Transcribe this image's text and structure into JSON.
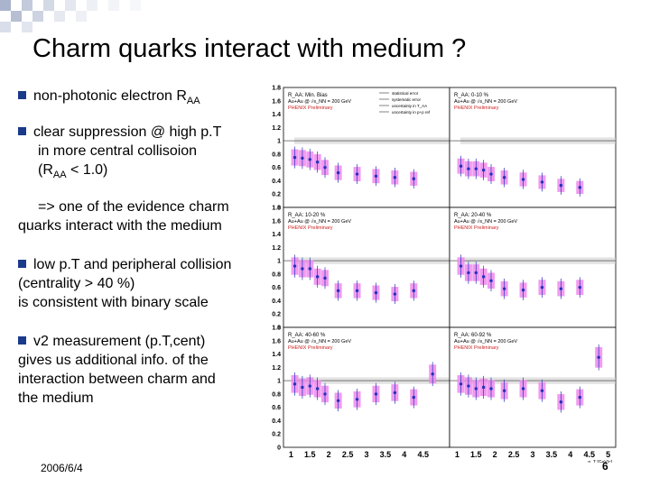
{
  "title": "Charm quarks interact with medium ?",
  "bullets": {
    "b1": {
      "text": "non-photonic electron R",
      "sub": "AA"
    },
    "b2": {
      "line1": "clear suppression @ high p.T",
      "line2": "in more central collisoion",
      "line3_pre": "(R",
      "line3_sub": "AA",
      "line3_post": " < 1.0)"
    },
    "note": {
      "line1": "=> one of the evidence charm",
      "line2": "quarks interact with the medium"
    },
    "b3": {
      "line1": "low p.T and peripheral collision",
      "line2": "(centrality > 40 %)",
      "line3": "is consistent with binary scale"
    },
    "b4": {
      "line1": "v2 measurement (p.T,cent)",
      "line2": "gives us additional info. of the",
      "line3": "interaction between charm and",
      "line4": "the medium"
    }
  },
  "footer": {
    "date": "2006/6/4",
    "page": "6"
  },
  "colors": {
    "bullet": "#1a3a8a",
    "box": "#ee88ee",
    "marker": "#2233bb",
    "band": "#cccccc"
  },
  "chart_data": {
    "type": "scatter",
    "xlabel": "p_T [GeV/c]",
    "xlim": [
      0.8,
      5.2
    ],
    "ylim": [
      0,
      1.8
    ],
    "x_ticks": [
      "1",
      "1.5",
      "2",
      "2.5",
      "3",
      "3.5",
      "4",
      "4.5",
      "5"
    ],
    "y_ticks": [
      "0",
      "0.2",
      "0.4",
      "0.6",
      "0.8",
      "1",
      "1.2",
      "1.4",
      "1.6",
      "1.8"
    ],
    "legend": [
      "statistical error",
      "systematic error",
      "uncertainty in T_AA",
      "uncertainty in p+p ref"
    ],
    "collision": "Au+Au @ √s_NN = 200 GeV",
    "label": "PHENIX Preliminary",
    "panels": [
      {
        "name": "R_AA: Min. Bias",
        "x": [
          1.1,
          1.3,
          1.5,
          1.7,
          1.9,
          2.25,
          2.75,
          3.25,
          3.75,
          4.25
        ],
        "y": [
          0.75,
          0.74,
          0.72,
          0.68,
          0.6,
          0.52,
          0.5,
          0.47,
          0.45,
          0.43
        ]
      },
      {
        "name": "R_AA: 0-10 %",
        "x": [
          1.1,
          1.3,
          1.5,
          1.7,
          1.9,
          2.25,
          2.75,
          3.25,
          3.75,
          4.25
        ],
        "y": [
          0.62,
          0.58,
          0.58,
          0.56,
          0.5,
          0.45,
          0.42,
          0.38,
          0.33,
          0.3
        ]
      },
      {
        "name": "R_AA: 10-20 %",
        "x": [
          1.1,
          1.3,
          1.5,
          1.7,
          1.9,
          2.25,
          2.75,
          3.25,
          3.75,
          4.25
        ],
        "y": [
          0.92,
          0.88,
          0.88,
          0.76,
          0.74,
          0.55,
          0.55,
          0.52,
          0.5,
          0.55
        ]
      },
      {
        "name": "R_AA: 20-40 %",
        "x": [
          1.1,
          1.3,
          1.5,
          1.7,
          1.9,
          2.25,
          2.75,
          3.25,
          3.75,
          4.25
        ],
        "y": [
          0.92,
          0.82,
          0.82,
          0.76,
          0.7,
          0.58,
          0.56,
          0.6,
          0.58,
          0.6
        ]
      },
      {
        "name": "R_AA: 40-60 %",
        "x": [
          1.1,
          1.3,
          1.5,
          1.7,
          1.9,
          2.25,
          2.75,
          3.25,
          3.75,
          4.25,
          4.75
        ],
        "y": [
          0.95,
          0.9,
          0.92,
          0.88,
          0.8,
          0.7,
          0.72,
          0.8,
          0.82,
          0.75,
          1.1
        ]
      },
      {
        "name": "R_AA: 60-92 %",
        "x": [
          1.1,
          1.3,
          1.5,
          1.7,
          1.9,
          2.25,
          2.75,
          3.25,
          3.75,
          4.25,
          4.75
        ],
        "y": [
          0.95,
          0.92,
          0.88,
          0.9,
          0.88,
          0.85,
          0.88,
          0.85,
          0.68,
          0.75,
          1.35
        ]
      }
    ]
  }
}
